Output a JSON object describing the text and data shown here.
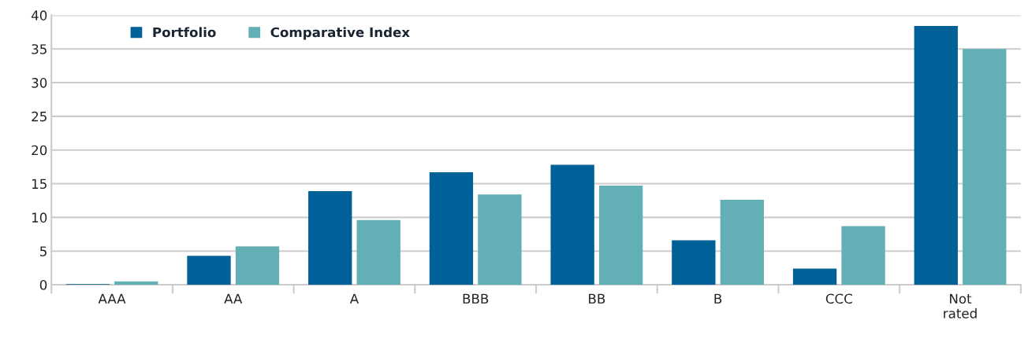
{
  "chart_data": {
    "type": "bar",
    "categories": [
      "AAA",
      "AA",
      "A",
      "BBB",
      "BB",
      "B",
      "CCC",
      "Not\nrated"
    ],
    "series": [
      {
        "name": "Portfolio",
        "color": "#006098",
        "values": [
          0.1,
          4.3,
          13.9,
          16.7,
          17.8,
          6.6,
          2.4,
          38.4
        ]
      },
      {
        "name": "Comparative Index",
        "color": "#62afb5",
        "values": [
          0.5,
          5.7,
          9.6,
          13.4,
          14.7,
          12.6,
          8.7,
          35.0
        ]
      }
    ],
    "ylim": [
      0,
      40
    ],
    "yticks": [
      0,
      5,
      10,
      15,
      20,
      25,
      30,
      35,
      40
    ],
    "grid": "y",
    "legend": "top left"
  }
}
